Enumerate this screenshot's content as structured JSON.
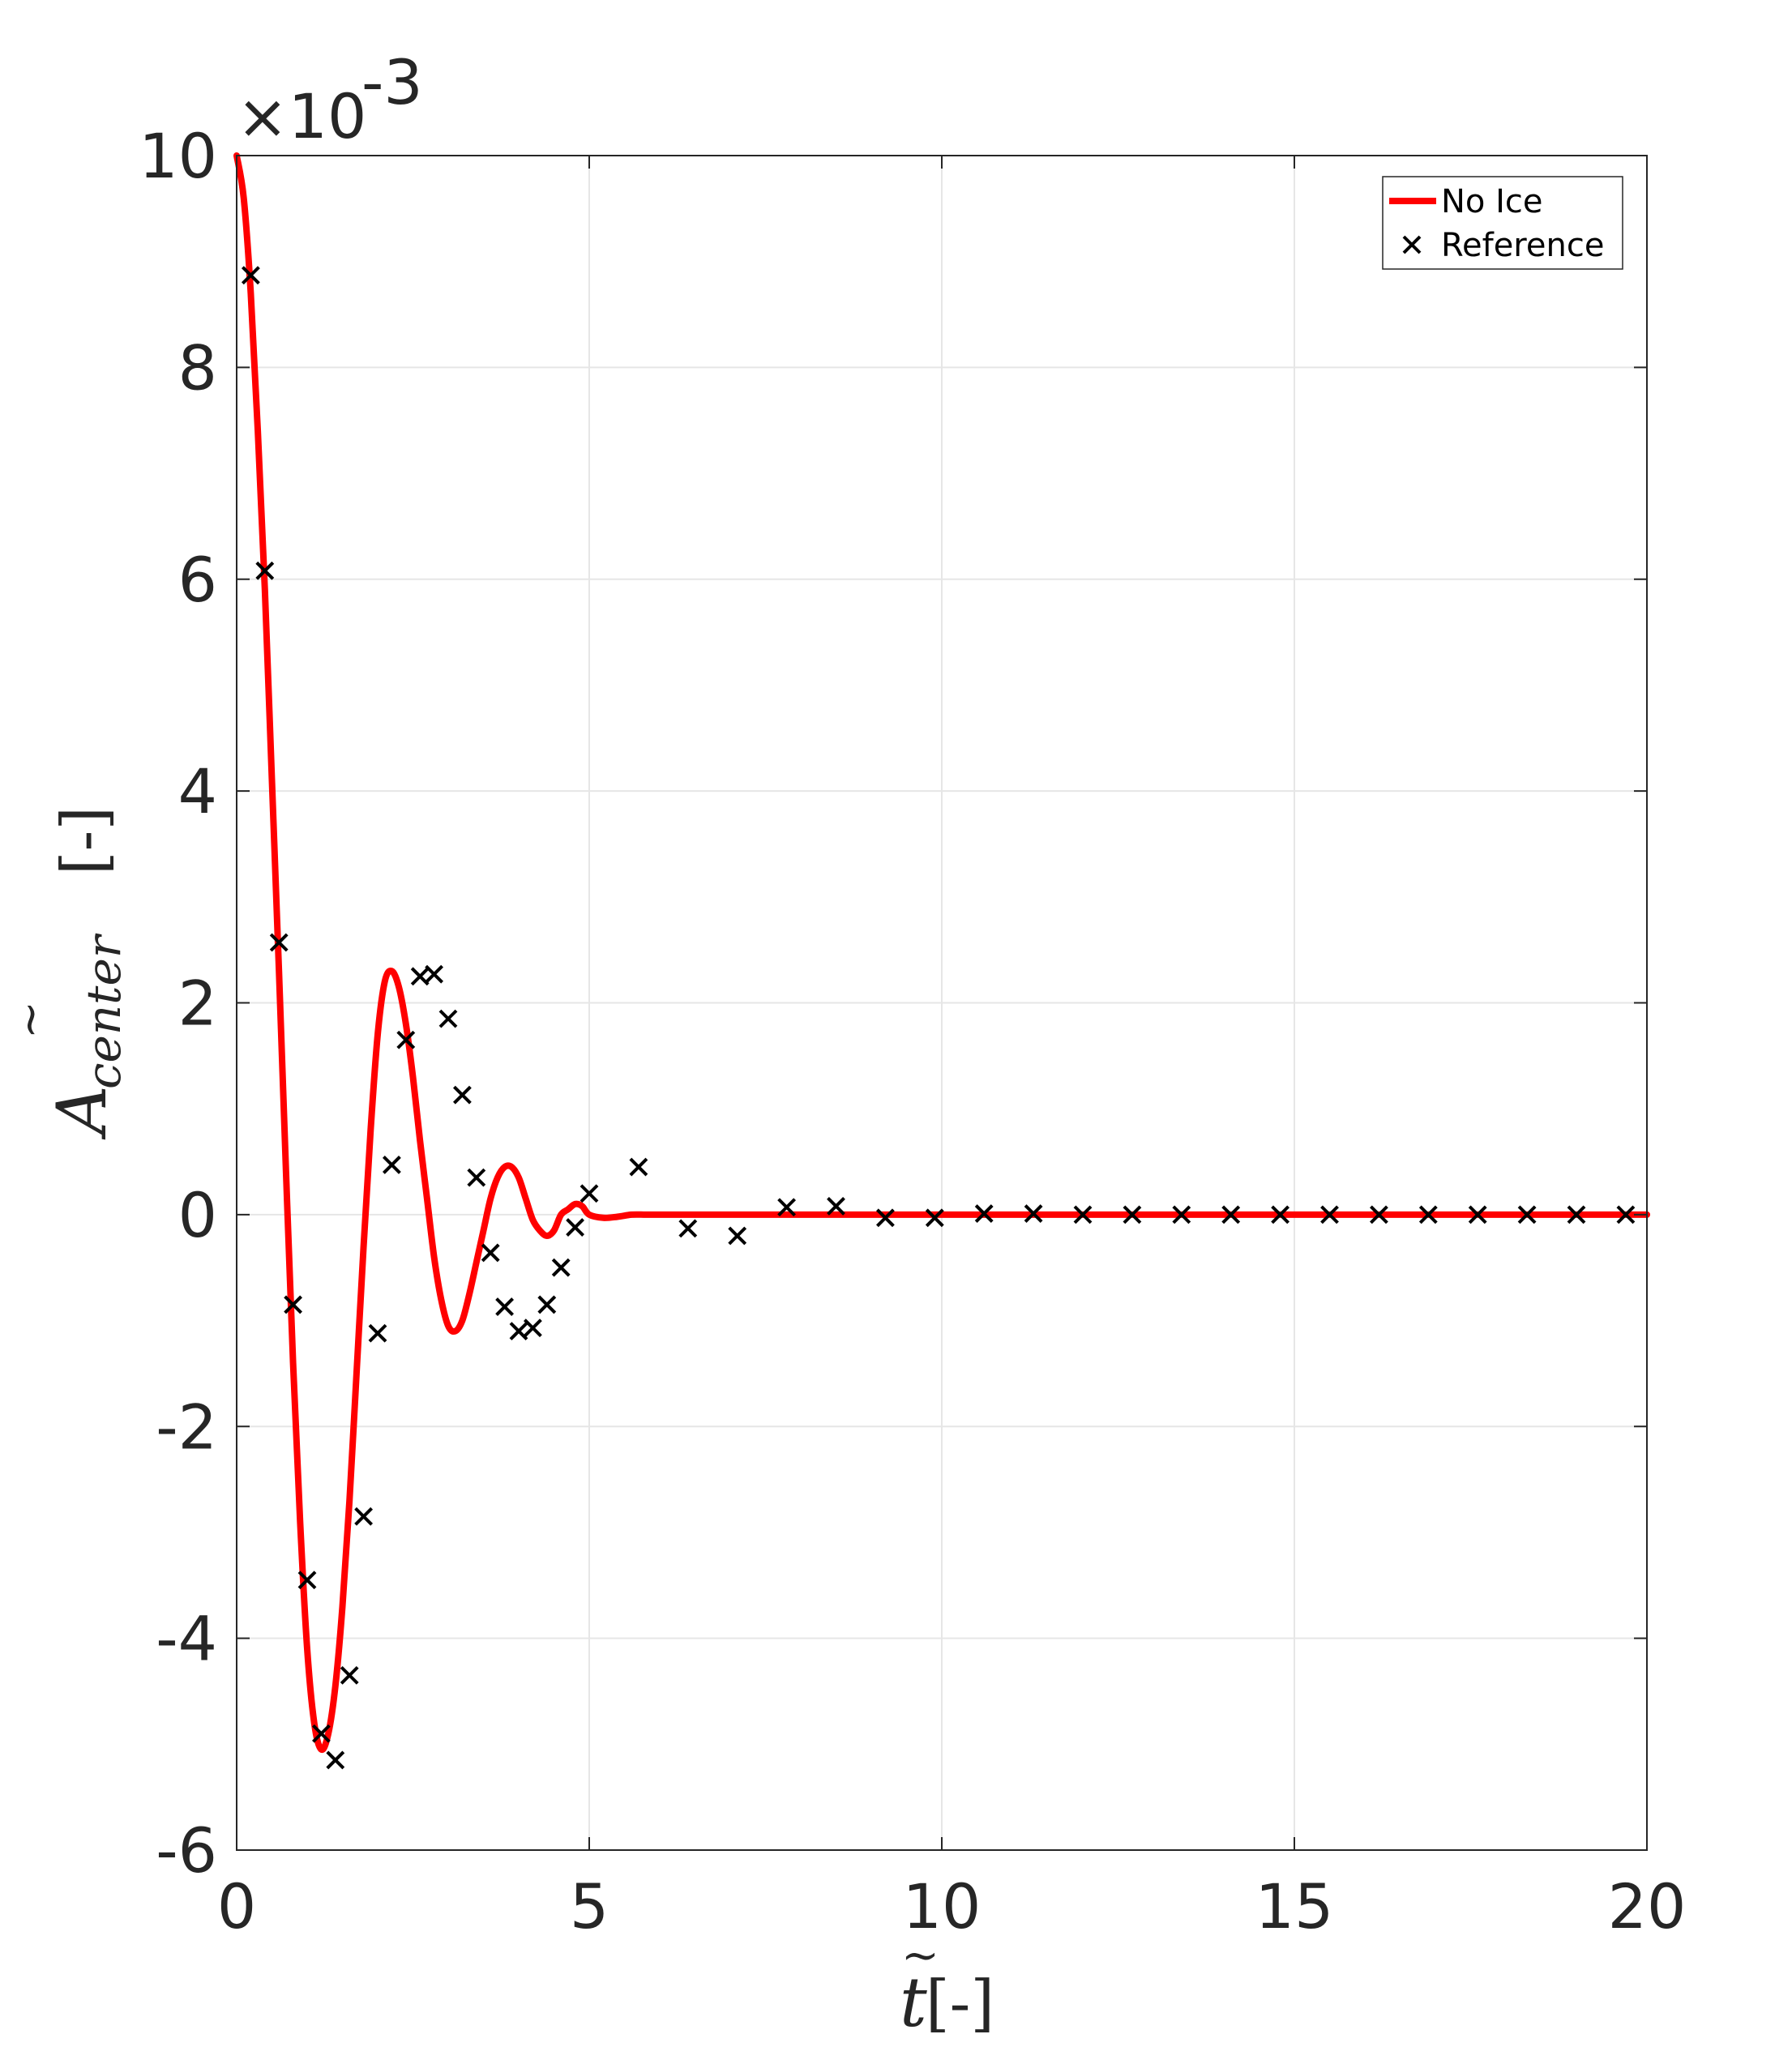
{
  "chart_data": {
    "type": "line",
    "title": "",
    "xlabel": {
      "symbol": "t",
      "accent": "~",
      "unit": "[-]"
    },
    "ylabel": {
      "symbol": "A",
      "accent": "~",
      "subscript": "center",
      "unit": "[-]"
    },
    "exponent_label": {
      "prefix": "×10",
      "power": "-3"
    },
    "xlim": [
      0,
      20
    ],
    "ylim": [
      -6,
      10
    ],
    "xticks": [
      0,
      5,
      10,
      15,
      20
    ],
    "xtick_labels": [
      "0",
      "5",
      "10",
      "15",
      "20"
    ],
    "yticks": [
      -6,
      -4,
      -2,
      0,
      2,
      4,
      6,
      8,
      10
    ],
    "ytick_labels": [
      "-6",
      "-4",
      "-2",
      "0",
      "2",
      "4",
      "6",
      "8",
      "10"
    ],
    "grid": true,
    "legend_position": "top-right",
    "colors": {
      "no_ice": "#ff0000",
      "reference": "#000000",
      "axis": "#262626",
      "grid": "#e6e6e6"
    },
    "series": [
      {
        "name": "No Ice",
        "style": "line",
        "x": [
          0,
          0.1,
          0.2,
          0.3,
          0.4,
          0.5,
          0.6,
          0.7,
          0.8,
          0.9,
          1.0,
          1.1,
          1.2,
          1.3,
          1.4,
          1.5,
          1.6,
          1.7,
          1.8,
          1.9,
          2.0,
          2.1,
          2.2,
          2.3,
          2.4,
          2.5,
          2.6,
          2.7,
          2.8,
          2.9,
          3.0,
          3.1,
          3.2,
          3.3,
          3.4,
          3.5,
          3.6,
          3.7,
          3.8,
          3.9,
          4.0,
          4.1,
          4.2,
          4.3,
          4.4,
          4.5,
          4.6,
          4.7,
          4.8,
          4.9,
          5.0,
          5.2,
          5.4,
          5.6,
          5.8,
          6.0,
          6.2,
          6.4,
          6.6,
          6.8,
          7.0,
          7.2,
          7.4,
          7.6,
          7.8,
          8.0,
          8.2,
          8.5,
          8.8,
          9.1,
          9.4,
          9.7,
          10.0,
          10.5,
          11.0,
          11.5,
          12.0,
          13.0,
          14.0,
          15.0,
          16.0,
          17.0,
          18.0,
          19.0,
          20.0
        ],
        "y": [
          10.0,
          9.6,
          8.7,
          7.4,
          5.9,
          4.1,
          2.3,
          0.4,
          -1.4,
          -2.9,
          -4.1,
          -4.8,
          -5.05,
          -4.9,
          -4.45,
          -3.7,
          -2.7,
          -1.5,
          -0.3,
          0.8,
          1.7,
          2.2,
          2.3,
          2.15,
          1.8,
          1.3,
          0.7,
          0.15,
          -0.4,
          -0.8,
          -1.05,
          -1.1,
          -1.0,
          -0.75,
          -0.45,
          -0.15,
          0.15,
          0.35,
          0.45,
          0.45,
          0.35,
          0.15,
          -0.05,
          -0.15,
          -0.2,
          -0.15,
          0.0,
          0.05,
          0.1,
          0.08,
          0.0,
          -0.03,
          -0.02,
          0.0,
          0.0,
          0.0,
          0.0,
          0.0,
          0.0,
          0.0,
          0.0,
          0.0,
          0.0,
          0.0,
          0.0,
          0.0,
          0.0,
          0.0,
          0.0,
          0.0,
          0.0,
          0.0,
          0.0,
          0.0,
          0.0,
          0.0,
          0.0,
          0.0,
          0.0,
          0.0,
          0.0,
          0.0,
          0.0,
          0.0,
          0.0
        ]
      },
      {
        "name": "Reference",
        "style": "markers-x",
        "x": [
          0.2,
          0.4,
          0.6,
          0.8,
          1.0,
          1.2,
          1.4,
          1.6,
          1.8,
          2.0,
          2.2,
          2.4,
          2.6,
          2.8,
          3.0,
          3.2,
          3.4,
          3.6,
          3.8,
          4.0,
          4.2,
          4.4,
          4.6,
          4.8,
          5.0,
          5.7,
          6.4,
          7.1,
          7.8,
          8.5,
          9.2,
          9.9,
          10.6,
          11.3,
          12.0,
          12.7,
          13.4,
          14.1,
          14.8,
          15.5,
          16.2,
          16.9,
          17.6,
          18.3,
          19.0,
          19.7
        ],
        "y": [
          8.87,
          6.08,
          2.57,
          -0.85,
          -3.45,
          -4.9,
          -5.15,
          -4.35,
          -2.85,
          -1.12,
          0.47,
          1.65,
          2.25,
          2.27,
          1.85,
          1.13,
          0.35,
          -0.36,
          -0.87,
          -1.1,
          -1.07,
          -0.85,
          -0.5,
          -0.12,
          0.2,
          0.45,
          -0.13,
          -0.2,
          0.07,
          0.08,
          -0.03,
          -0.03,
          0.01,
          0.01,
          0.0,
          0.0,
          0.0,
          0.0,
          0.0,
          0.0,
          0.0,
          0.0,
          0.0,
          0.0,
          0.0,
          0.0
        ]
      }
    ]
  }
}
